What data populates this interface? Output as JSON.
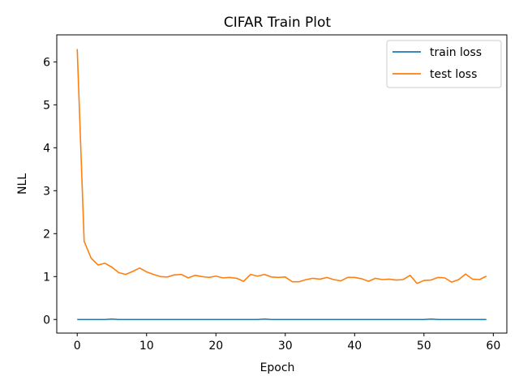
{
  "chart_data": {
    "type": "line",
    "title": "CIFAR Train Plot",
    "xlabel": "Epoch",
    "ylabel": "NLL",
    "xlim": [
      -2.95,
      61.95
    ],
    "ylim": [
      -0.316,
      6.63
    ],
    "xticks": [
      0,
      10,
      20,
      30,
      40,
      50,
      60
    ],
    "yticks": [
      0,
      1,
      2,
      3,
      4,
      5,
      6
    ],
    "x_tick_labels": [
      "0",
      "10",
      "20",
      "30",
      "40",
      "50",
      "60"
    ],
    "y_tick_labels": [
      "0",
      "1",
      "2",
      "3",
      "4",
      "5",
      "6"
    ],
    "grid": false,
    "legend_position": "top-right",
    "x": [
      0,
      1,
      2,
      3,
      4,
      5,
      6,
      7,
      8,
      9,
      10,
      11,
      12,
      13,
      14,
      15,
      16,
      17,
      18,
      19,
      20,
      21,
      22,
      23,
      24,
      25,
      26,
      27,
      28,
      29,
      30,
      31,
      32,
      33,
      34,
      35,
      36,
      37,
      38,
      39,
      40,
      41,
      42,
      43,
      44,
      45,
      46,
      47,
      48,
      49,
      50,
      51,
      52,
      53,
      54,
      55,
      56,
      57,
      58,
      59
    ],
    "series": [
      {
        "name": "train loss",
        "color": "#1f77b4",
        "values": [
          0.0,
          0.0,
          0.0,
          0.0,
          0.0,
          0.01,
          0.0,
          0.0,
          0.0,
          0.0,
          0.0,
          0.0,
          0.0,
          0.0,
          0.0,
          0.0,
          0.0,
          0.0,
          0.0,
          0.0,
          0.0,
          0.0,
          0.0,
          0.0,
          0.0,
          0.0,
          0.0,
          0.01,
          0.0,
          0.0,
          0.0,
          0.0,
          0.0,
          0.0,
          0.0,
          0.0,
          0.0,
          0.0,
          0.0,
          0.0,
          0.0,
          0.0,
          0.0,
          0.0,
          0.0,
          0.0,
          0.0,
          0.0,
          0.0,
          0.0,
          0.0,
          0.01,
          0.0,
          0.0,
          0.0,
          0.0,
          0.0,
          0.0,
          0.0,
          0.0
        ]
      },
      {
        "name": "test loss",
        "color": "#ff7f0e",
        "values": [
          6.3,
          1.82,
          1.43,
          1.27,
          1.31,
          1.22,
          1.09,
          1.05,
          1.12,
          1.2,
          1.11,
          1.05,
          1.0,
          0.99,
          1.04,
          1.05,
          0.97,
          1.03,
          1.0,
          0.98,
          1.01,
          0.97,
          0.98,
          0.96,
          0.89,
          1.05,
          1.01,
          1.05,
          0.99,
          0.98,
          0.99,
          0.88,
          0.88,
          0.93,
          0.96,
          0.94,
          0.98,
          0.93,
          0.9,
          0.98,
          0.98,
          0.95,
          0.89,
          0.96,
          0.93,
          0.94,
          0.92,
          0.93,
          1.03,
          0.84,
          0.91,
          0.92,
          0.98,
          0.97,
          0.87,
          0.93,
          1.06,
          0.94,
          0.93,
          1.01
        ]
      }
    ]
  }
}
